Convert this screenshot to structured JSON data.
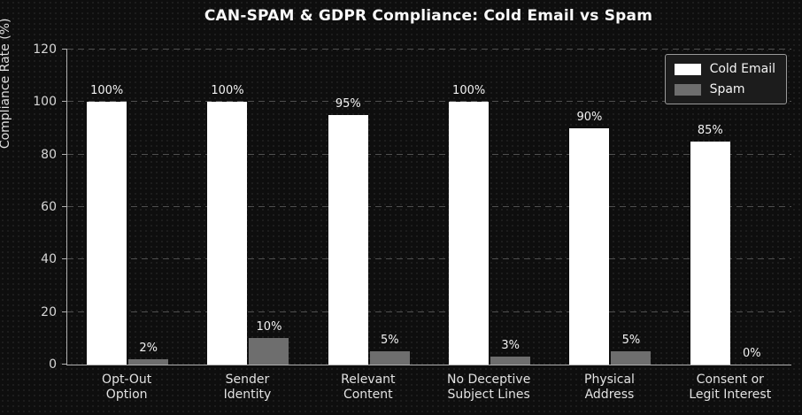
{
  "title": "CAN-SPAM & GDPR Compliance: Cold Email vs Spam",
  "colors": {
    "background": "#0e0e0e",
    "cold_email": "#ffffff",
    "spam": "#6e6e6e",
    "grid": "#4f4f4f",
    "axis": "#b0b0b0",
    "text": "#e8e8e8"
  },
  "legend": {
    "items": [
      {
        "label": "Cold Email",
        "color": "#ffffff"
      },
      {
        "label": "Spam",
        "color": "#6e6e6e"
      }
    ]
  },
  "chart_data": {
    "type": "bar",
    "title": "CAN-SPAM & GDPR Compliance: Cold Email vs Spam",
    "xlabel": "",
    "ylabel": "Compliance Rate (%)",
    "ylim": [
      0,
      120
    ],
    "yticks": [
      0,
      20,
      40,
      60,
      80,
      100,
      120
    ],
    "grid": "horizontal-dashed",
    "legend_position": "upper right",
    "categories": [
      "Opt-Out Option",
      "Sender Identity",
      "Relevant Content",
      "No Deceptive Subject Lines",
      "Physical Address",
      "Consent or Legit Interest"
    ],
    "category_lines": [
      [
        "Opt-Out",
        "Option"
      ],
      [
        "Sender",
        "Identity"
      ],
      [
        "Relevant",
        "Content"
      ],
      [
        "No Deceptive",
        "Subject Lines"
      ],
      [
        "Physical",
        "Address"
      ],
      [
        "Consent or",
        "Legit Interest"
      ]
    ],
    "series": [
      {
        "name": "Cold Email",
        "color": "#ffffff",
        "values": [
          100,
          100,
          95,
          100,
          90,
          85
        ],
        "value_labels": [
          "100%",
          "100%",
          "95%",
          "100%",
          "90%",
          "85%"
        ]
      },
      {
        "name": "Spam",
        "color": "#6e6e6e",
        "values": [
          2,
          10,
          5,
          3,
          5,
          0
        ],
        "value_labels": [
          "2%",
          "10%",
          "5%",
          "3%",
          "5%",
          "0%"
        ]
      }
    ]
  }
}
